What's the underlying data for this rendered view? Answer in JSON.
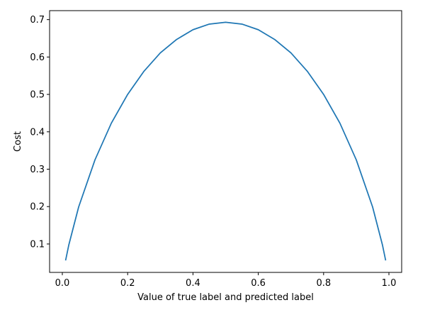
{
  "chart_data": {
    "type": "line",
    "title": "",
    "xlabel": "Value of true label and predicted label",
    "ylabel": "Cost",
    "xlim": [
      -0.039,
      1.039
    ],
    "ylim": [
      0.024,
      0.724
    ],
    "xticks": [
      0.0,
      0.2,
      0.4,
      0.6,
      0.8,
      1.0
    ],
    "xtick_labels": [
      "0.0",
      "0.2",
      "0.4",
      "0.6",
      "0.8",
      "1.0"
    ],
    "yticks": [
      0.1,
      0.2,
      0.3,
      0.4,
      0.5,
      0.6,
      0.7
    ],
    "ytick_labels": [
      "0.1",
      "0.2",
      "0.3",
      "0.4",
      "0.5",
      "0.6",
      "0.7"
    ],
    "grid": false,
    "series": [
      {
        "color": "#1f77b4",
        "x": [
          0.01,
          0.02,
          0.05,
          0.1,
          0.15,
          0.2,
          0.25,
          0.3,
          0.35,
          0.4,
          0.45,
          0.5,
          0.55,
          0.6,
          0.65,
          0.7,
          0.75,
          0.8,
          0.85,
          0.9,
          0.95,
          0.98,
          0.99
        ],
        "y": [
          0.056,
          0.098,
          0.199,
          0.325,
          0.423,
          0.5,
          0.562,
          0.611,
          0.647,
          0.673,
          0.688,
          0.693,
          0.688,
          0.673,
          0.647,
          0.611,
          0.562,
          0.5,
          0.423,
          0.325,
          0.199,
          0.098,
          0.056
        ]
      }
    ]
  }
}
